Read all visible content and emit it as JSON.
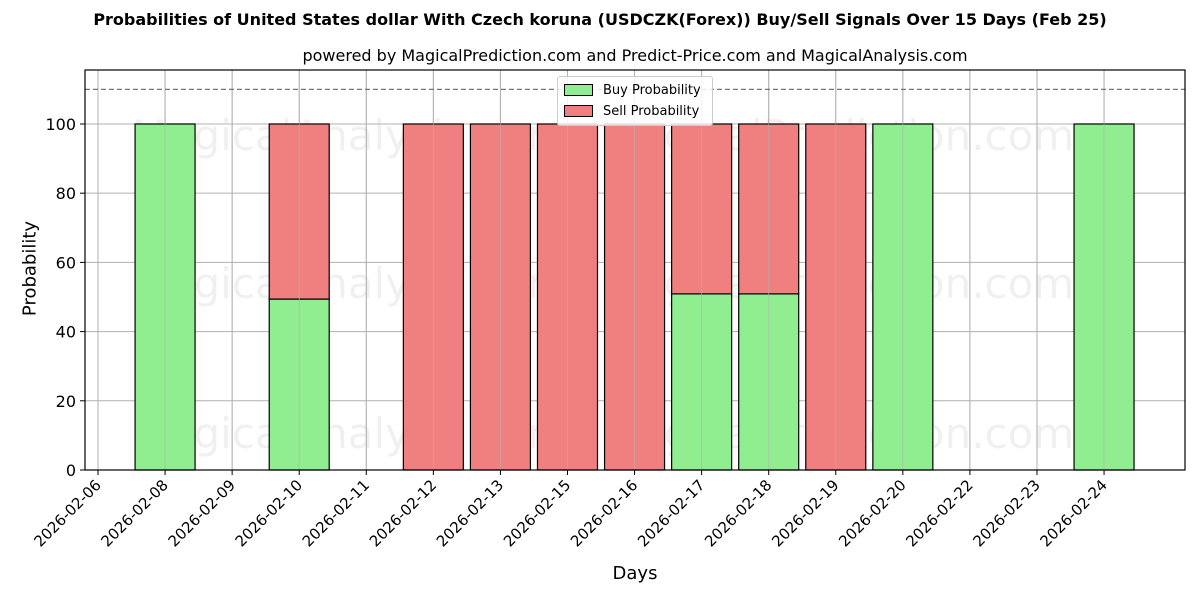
{
  "chart_data": {
    "type": "bar",
    "stacked": true,
    "title": "Probabilities of United States dollar With Czech koruna (USDCZK(Forex)) Buy/Sell Signals Over 15 Days (Feb 25)",
    "subtitle": "powered by MagicalPrediction.com and Predict-Price.com and MagicalAnalysis.com",
    "xlabel": "Days",
    "ylabel": "Probability",
    "ylim": [
      0,
      115.6
    ],
    "yticks": [
      0,
      20,
      40,
      60,
      80,
      100
    ],
    "threshold_line": 110,
    "grid": true,
    "legend_position": "upper center",
    "xtick_labels": [
      "2026-02-06",
      "2026-02-08",
      "2026-02-09",
      "2026-02-10",
      "2026-02-11",
      "2026-02-12",
      "2026-02-13",
      "2026-02-15",
      "2026-02-16",
      "2026-02-17",
      "2026-02-18",
      "2026-02-19",
      "2026-02-20",
      "2026-02-22",
      "2026-02-23",
      "2026-02-24"
    ],
    "categories": [
      "2026-02-08",
      "2026-02-10",
      "2026-02-12",
      "2026-02-13",
      "2026-02-15",
      "2026-02-16",
      "2026-02-17",
      "2026-02-18",
      "2026-02-19",
      "2026-02-20",
      "2026-02-24"
    ],
    "series": [
      {
        "name": "Buy Probability",
        "color": "#90ee90",
        "values": [
          100,
          49.4,
          0,
          0,
          0,
          0,
          50.9,
          50.9,
          0,
          100,
          100
        ]
      },
      {
        "name": "Sell Probability",
        "color": "#f08080",
        "values": [
          0,
          50.6,
          100,
          100,
          100,
          100,
          49.1,
          49.1,
          100,
          0,
          0
        ]
      }
    ]
  },
  "watermarks": [
    "MagicalAnalysis.com",
    "MagicalPrediction.com"
  ],
  "legend": {
    "buy": "Buy Probability",
    "sell": "Sell Probability"
  }
}
